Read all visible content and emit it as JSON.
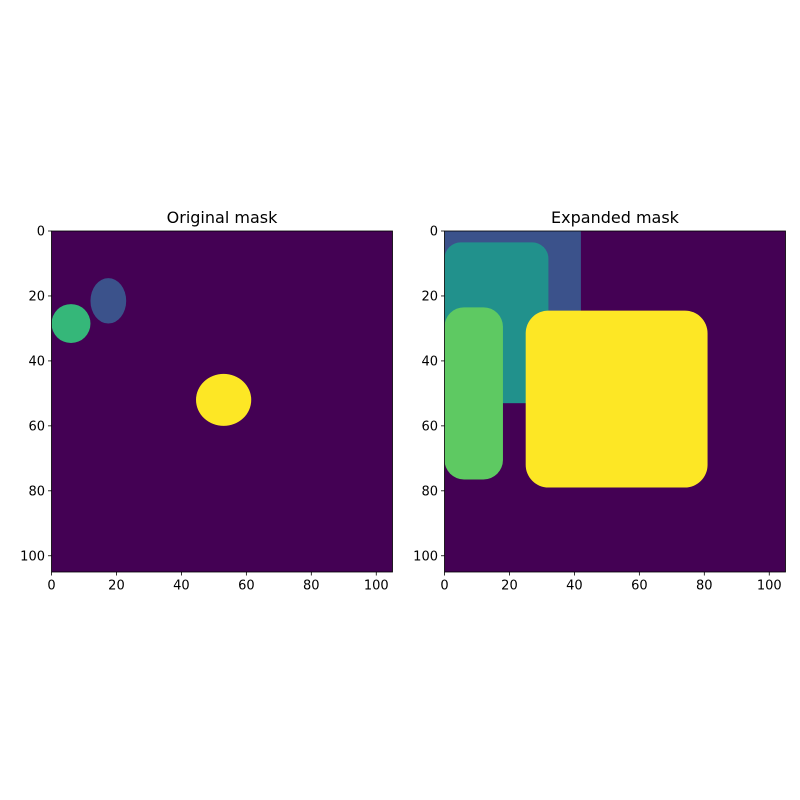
{
  "chart_data": [
    {
      "type": "heatmap",
      "title": "Original mask",
      "xlim": [
        0,
        105
      ],
      "ylim": [
        105,
        0
      ],
      "xticks": [
        0,
        20,
        40,
        60,
        80,
        100
      ],
      "yticks": [
        0,
        20,
        40,
        60,
        80,
        100
      ],
      "grid": false,
      "colormap": "viridis",
      "background_color": "#440154",
      "regions": [
        {
          "label": 1,
          "color": "#3b528b",
          "shape": "ellipse",
          "center": [
            17.5,
            21.5
          ],
          "radius": [
            5.5,
            7
          ]
        },
        {
          "label": 2,
          "color": "#35b779",
          "shape": "ellipse",
          "center": [
            6,
            28.5
          ],
          "radius": [
            6,
            6
          ]
        },
        {
          "label": 3,
          "color": "#fde725",
          "shape": "ellipse",
          "center": [
            53,
            52
          ],
          "radius": [
            8.5,
            8
          ]
        }
      ]
    },
    {
      "type": "heatmap",
      "title": "Expanded mask",
      "xlim": [
        0,
        105
      ],
      "ylim": [
        105,
        0
      ],
      "xticks": [
        0,
        20,
        40,
        60,
        80,
        100
      ],
      "yticks": [
        0,
        20,
        40,
        60,
        80,
        100
      ],
      "grid": false,
      "colormap": "viridis",
      "background_color": "#440154",
      "regions": [
        {
          "label": 1,
          "color": "#3b528b",
          "shape": "rect",
          "x": [
            0,
            42
          ],
          "y": [
            0,
            53
          ]
        },
        {
          "label": 2,
          "color": "#21918c",
          "shape": "rounded-rect",
          "x": [
            0,
            32
          ],
          "y": [
            3.5,
            53
          ],
          "corner": 5
        },
        {
          "label": 3,
          "color": "#5ec962",
          "shape": "rounded-rect",
          "x": [
            0,
            18
          ],
          "y": [
            23.5,
            76.5
          ],
          "corner": 6
        },
        {
          "label": 4,
          "color": "#fde725",
          "shape": "rounded-rect",
          "x": [
            25,
            81
          ],
          "y": [
            24.5,
            79
          ],
          "corner": 7
        }
      ]
    }
  ]
}
